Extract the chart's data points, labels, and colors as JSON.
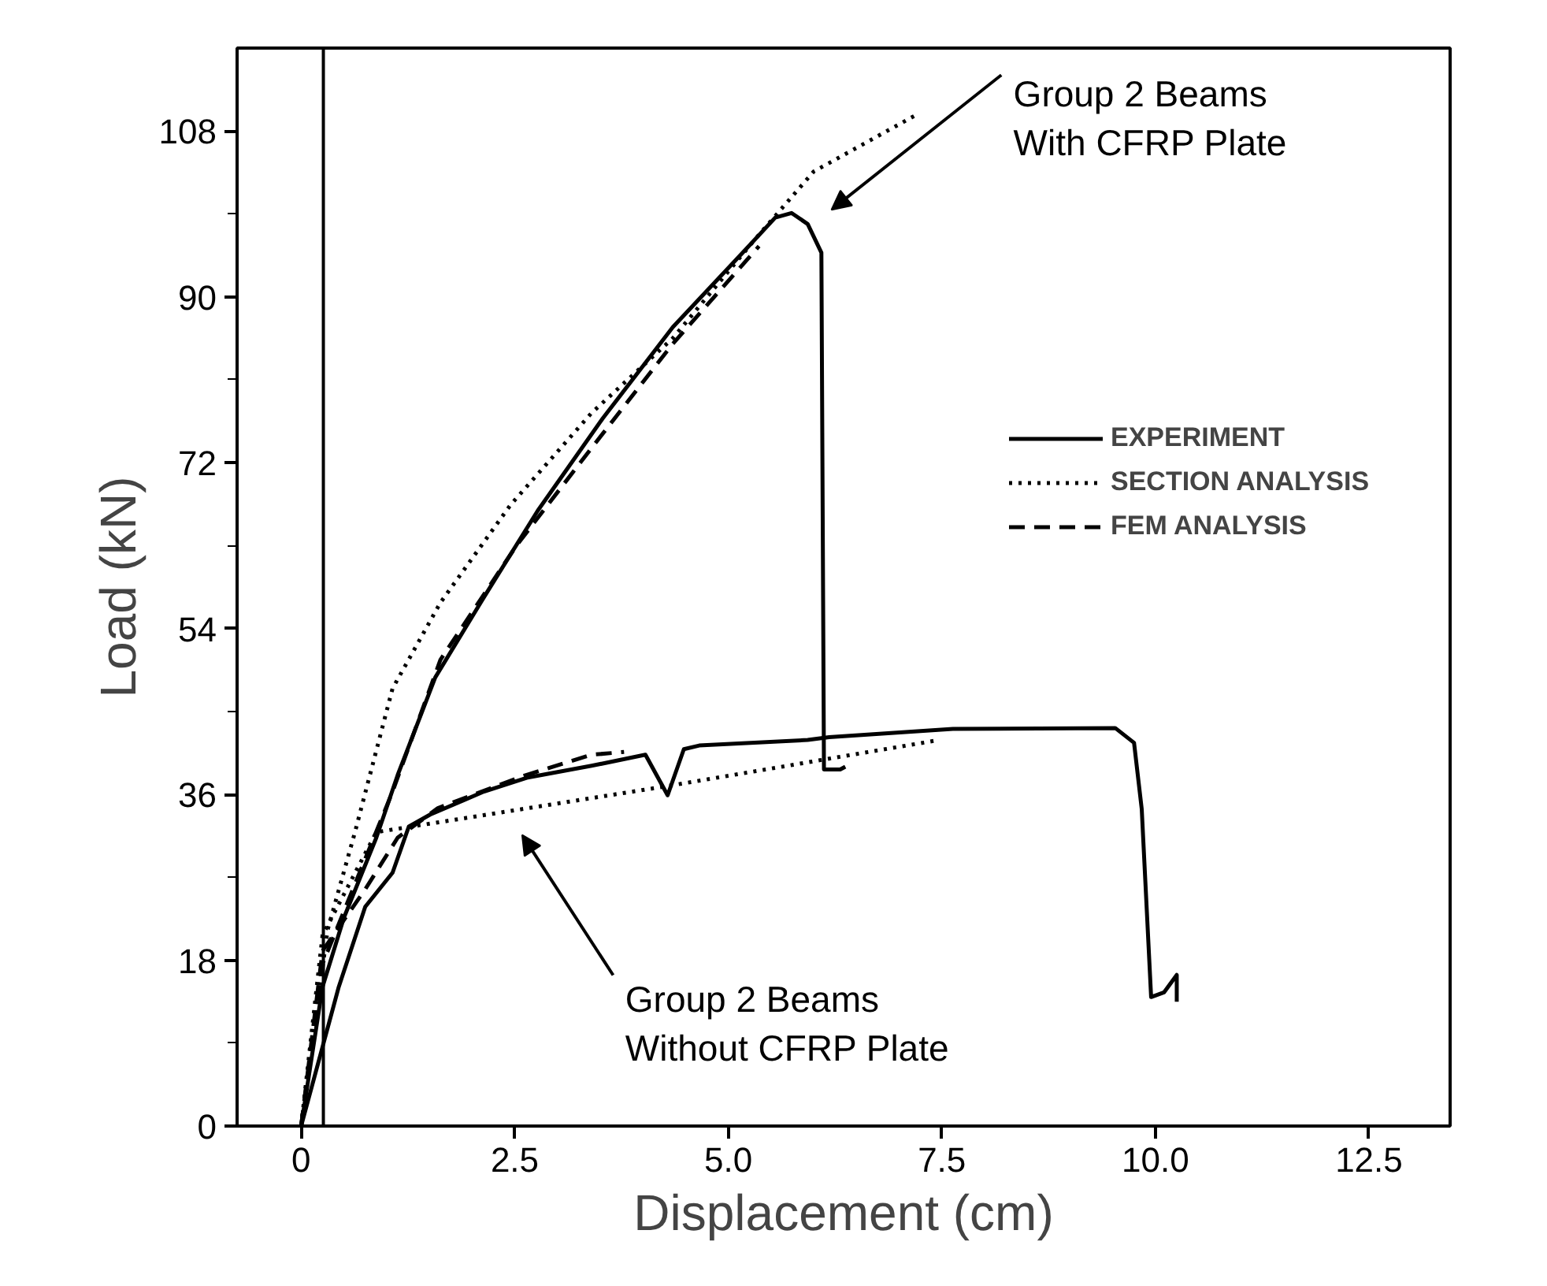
{
  "chart_data": {
    "type": "line",
    "xlabel": "Displacement (cm)",
    "ylabel": "Load (kN)",
    "xlim": [
      -0.75,
      13.45
    ],
    "ylim": [
      0,
      117
    ],
    "xticks": [
      0,
      2.5,
      {
        "value": 5,
        "label": "5.0"
      },
      7.5,
      {
        "value": 10,
        "label": "10.0"
      },
      12.5
    ],
    "yticks": [
      0,
      {
        "value": 9,
        "label": null
      },
      18,
      {
        "value": 27,
        "label": null
      },
      36,
      {
        "value": 45,
        "label": null
      },
      54,
      {
        "value": 63,
        "label": null
      },
      72,
      {
        "value": 81,
        "label": null
      },
      90,
      {
        "value": 99,
        "label": null
      },
      108
    ],
    "grid": false,
    "legend": "right",
    "marker": "none",
    "ref_lines": [
      {
        "axis": "x",
        "value": 0.26,
        "label": null,
        "color": "#000000",
        "line_style": "solid"
      }
    ],
    "annotations": [
      "Group 2 Beams\nWith CFRP Plate",
      "Group 2 Beams\nWithout CFRP Plate"
    ],
    "series": [
      {
        "name": "EXPERIMENT",
        "color": "#000000",
        "line_style": "solid",
        "x": [
          0,
          0.25,
          0.5,
          0.88,
          1.13,
          1.57,
          2.14,
          2.77,
          3.53,
          4.35,
          5.17,
          5.55,
          5.74,
          5.93,
          6.09,
          6.12,
          6.31,
          6.37
        ],
        "values": [
          0,
          15.1,
          22.6,
          31.3,
          38.1,
          48.7,
          57.4,
          66.8,
          76.8,
          86.7,
          94.8,
          98.6,
          99.1,
          97.9,
          94.8,
          38.7,
          38.7,
          39
        ]
      },
      {
        "name": "SECTION ANALYSIS",
        "color": "#000000",
        "line_style": "dotted",
        "x": [
          0,
          0.31,
          0.63,
          1.07,
          1.63,
          2.45,
          3.4,
          4.35,
          5.3,
          6.0,
          7.19
        ],
        "values": [
          0,
          21.3,
          31.9,
          47.5,
          56.8,
          67.4,
          77.4,
          85.5,
          96.1,
          103.6,
          109.7
        ]
      },
      {
        "name": "FEM ANALYSIS",
        "color": "#000000",
        "line_style": "dashed",
        "x": [
          0,
          0.25,
          1.07,
          1.63,
          2.52,
          3.4,
          4.35,
          5.36
        ],
        "values": [
          0,
          17.6,
          36.3,
          50.6,
          63,
          73.6,
          84.9,
          95.5
        ]
      },
      {
        "color": "#000000",
        "line_style": "solid",
        "x": [
          0,
          0.44,
          0.75,
          1.07,
          1.26,
          1.51,
          2.14,
          2.64,
          3.4,
          4.03,
          4.29,
          4.48,
          4.66,
          5.93,
          6.18,
          7.63,
          9.53,
          9.75,
          9.84,
          9.95,
          10.1,
          10.25,
          10.25
        ],
        "values": [
          0,
          15.1,
          23.8,
          27.5,
          32.5,
          33.8,
          36.3,
          37.8,
          39.1,
          40.3,
          35.9,
          40.9,
          41.3,
          41.9,
          42.2,
          43.1,
          43.2,
          41.6,
          34.4,
          14,
          14.5,
          16.4,
          13.5
        ]
      },
      {
        "color": "#000000",
        "line_style": "dotted",
        "x": [
          0,
          0.25,
          0.88,
          4.29,
          7.47
        ],
        "values": [
          0,
          20.7,
          31.9,
          36.9,
          41.9
        ]
      },
      {
        "color": "#000000",
        "line_style": "dashed",
        "x": [
          0,
          0.25,
          0.75,
          1.13,
          1.6,
          2.6,
          3.4,
          3.78
        ],
        "values": [
          0,
          19,
          25.7,
          31.3,
          34.5,
          38,
          40.3,
          40.6
        ]
      }
    ]
  }
}
